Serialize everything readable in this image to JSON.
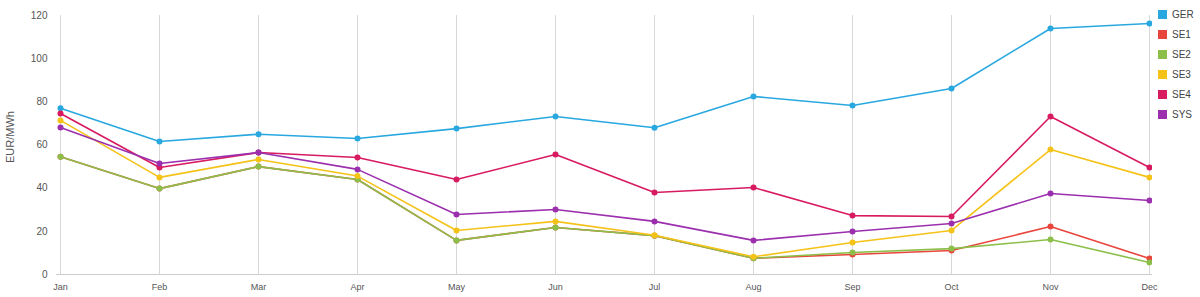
{
  "chart_data": {
    "type": "line",
    "y_label": "EUR/MWh",
    "categories": [
      "Jan",
      "Feb",
      "Mar",
      "Apr",
      "May",
      "Jun",
      "Jul",
      "Aug",
      "Sep",
      "Oct",
      "Nov",
      "Dec"
    ],
    "series": [
      {
        "name": "GER",
        "color": "#29a8e0",
        "values": [
          77,
          61.6,
          65,
          63,
          67.6,
          73.2,
          68,
          82.5,
          78.3,
          86.2,
          114,
          116.3
        ]
      },
      {
        "name": "SE1",
        "color": "#e8453c",
        "values": [
          54.6,
          39.8,
          50,
          44,
          15.8,
          21.8,
          18,
          7.5,
          9.3,
          11.1,
          22.2,
          7.4
        ]
      },
      {
        "name": "SE2",
        "color": "#8cbf4a",
        "values": [
          54.6,
          39.8,
          50,
          44,
          15.8,
          21.8,
          18,
          7.5,
          10.2,
          12,
          16.2,
          5.6
        ]
      },
      {
        "name": "SE3",
        "color": "#f5c218",
        "values": [
          71.4,
          45,
          53.3,
          45.6,
          20.4,
          24.6,
          18.2,
          8.2,
          14.8,
          20.4,
          57.9,
          45
        ]
      },
      {
        "name": "SE4",
        "color": "#d81b60",
        "values": [
          74.6,
          49.6,
          56.5,
          54.2,
          44,
          55.6,
          38,
          40.3,
          27.3,
          26.9,
          73.2,
          49.6
        ]
      },
      {
        "name": "SYS",
        "color": "#9b2fae",
        "values": [
          68.1,
          51.4,
          56.5,
          48.7,
          27.8,
          30.1,
          24.6,
          15.8,
          19.9,
          23.6,
          37.5,
          34.3
        ]
      }
    ],
    "ylim": [
      0,
      120
    ],
    "yticks": [
      0,
      20,
      40,
      60,
      80,
      100,
      120
    ],
    "grid": "x",
    "legend": "top-right",
    "marker": "circle",
    "line_style": "solid"
  }
}
